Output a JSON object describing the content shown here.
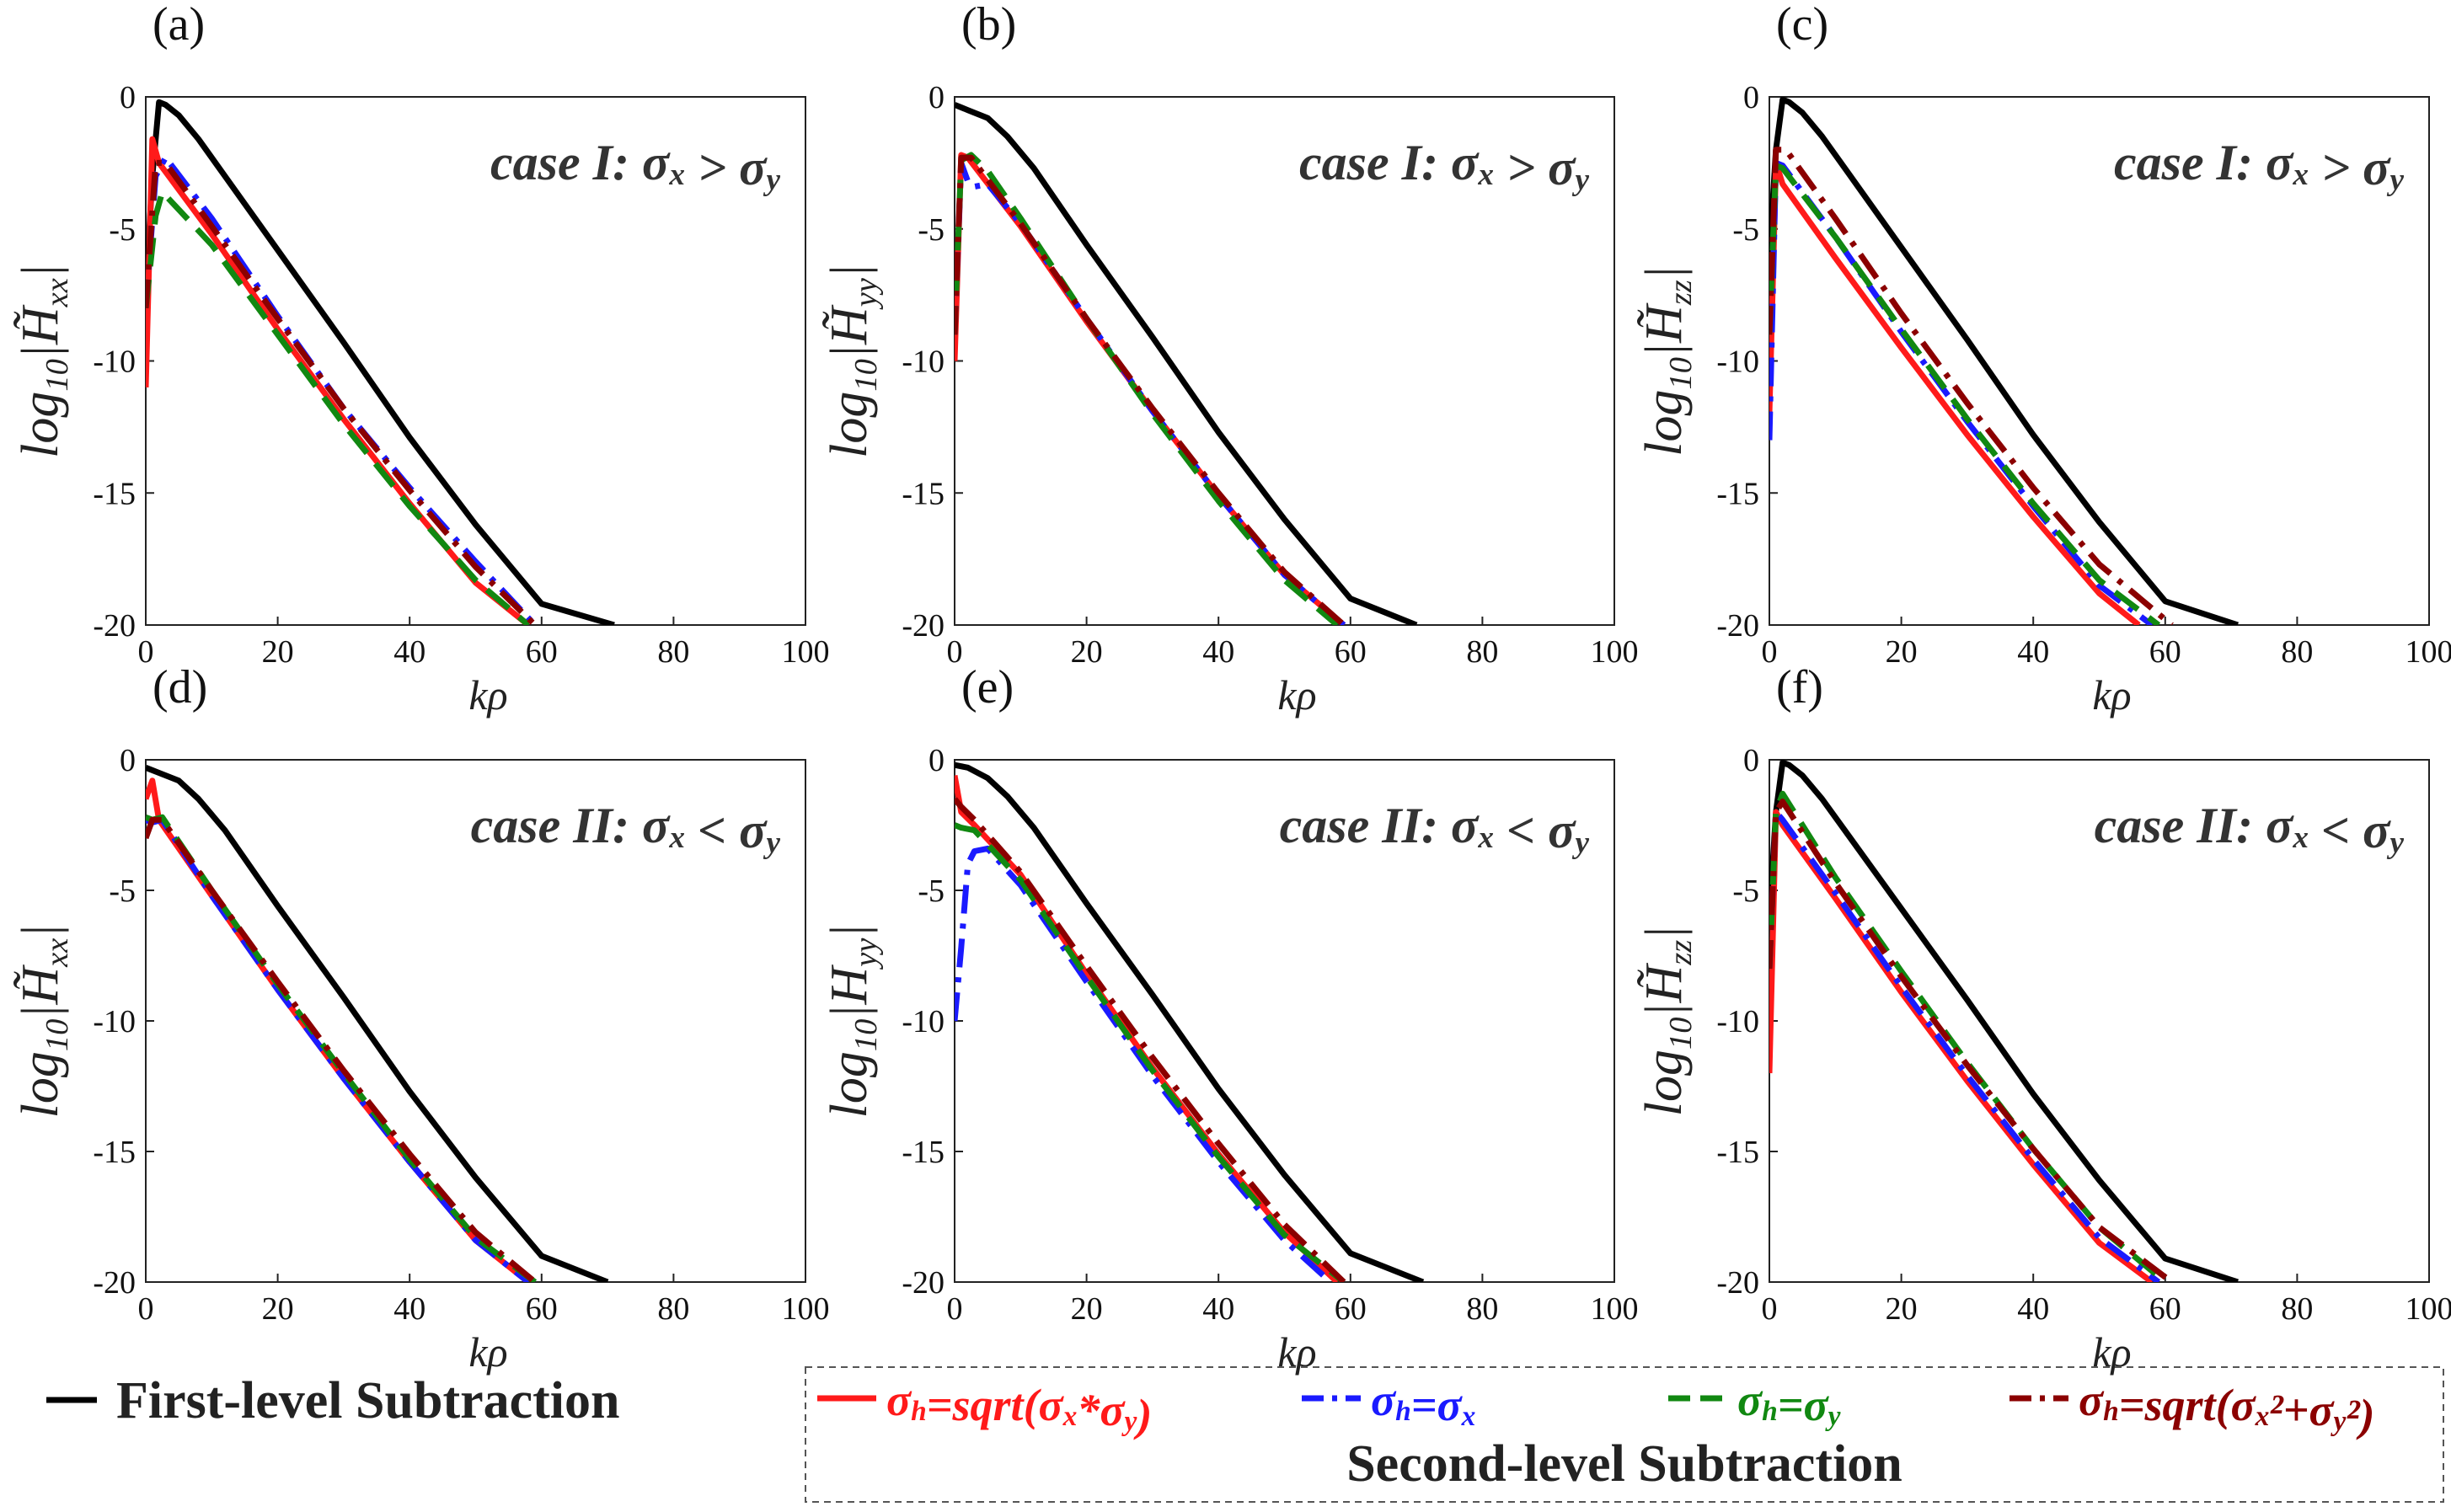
{
  "colors": {
    "first": "#000000",
    "sqrt_prod": "#ff1a1a",
    "sig_x": "#1a1aff",
    "sig_y": "#118811",
    "sqrt_sum": "#8b0000"
  },
  "legend": {
    "first_level": "First-level Subtraction",
    "second_level": "Second-level Subtraction",
    "items": [
      {
        "label": "σh=sqrt(σx*σy)",
        "color_key": "sqrt_prod",
        "dash": "solid"
      },
      {
        "label": "σh=σx",
        "color_key": "sig_x",
        "dash": "dashdot"
      },
      {
        "label": "σh=σy",
        "color_key": "sig_y",
        "dash": "dashed"
      },
      {
        "label": "σh=sqrt(σx²+σy²)",
        "color_key": "sqrt_sum",
        "dash": "dashdot"
      }
    ]
  },
  "chart_data": [
    {
      "type": "line",
      "panel": "(a)",
      "case_label": "case I: σx > σy",
      "xlabel": "kρ",
      "ylabel": "log10|H̃xx|",
      "xlim": [
        0,
        100
      ],
      "ylim": [
        -20,
        0
      ],
      "xticks": [
        0,
        20,
        40,
        60,
        80,
        100
      ],
      "yticks": [
        0,
        -5,
        -10,
        -15,
        -20
      ],
      "series": [
        {
          "name": "First-level Subtraction",
          "color_key": "first",
          "dash": "solid",
          "x": [
            0,
            1,
            2,
            3,
            5,
            8,
            12,
            20,
            30,
            40,
            50,
            60,
            71
          ],
          "y": [
            -7.5,
            -3,
            -0.2,
            -0.3,
            -0.7,
            -1.6,
            -3.0,
            -5.8,
            -9.3,
            -12.9,
            -16.2,
            -19.2,
            -20
          ]
        },
        {
          "name": "σh=sqrt(σx*σy)",
          "color_key": "sqrt_prod",
          "dash": "solid",
          "x": [
            0,
            1,
            2,
            10,
            20,
            30,
            40,
            50,
            58
          ],
          "y": [
            -11,
            -1.6,
            -2.5,
            -5.2,
            -8.8,
            -12.2,
            -15.4,
            -18.4,
            -20
          ]
        },
        {
          "name": "σh=σx",
          "color_key": "sig_x",
          "dash": "dashdot",
          "x": [
            0,
            1.5,
            3,
            10,
            20,
            30,
            40,
            50,
            59
          ],
          "y": [
            -8,
            -3,
            -2.3,
            -4.6,
            -8.3,
            -11.8,
            -14.8,
            -17.6,
            -20
          ]
        },
        {
          "name": "σh=σy",
          "color_key": "sig_y",
          "dash": "dashed",
          "x": [
            0,
            1.5,
            2.5,
            10,
            20,
            30,
            40,
            50,
            58
          ],
          "y": [
            -8,
            -4.5,
            -3.6,
            -5.6,
            -9.0,
            -12.4,
            -15.5,
            -18.3,
            -20
          ]
        },
        {
          "name": "σh=sqrt(σx²+σy²)",
          "color_key": "sqrt_sum",
          "dash": "dashdot",
          "x": [
            0,
            1.5,
            3,
            10,
            20,
            30,
            40,
            50,
            59
          ],
          "y": [
            -8,
            -2.5,
            -2.5,
            -4.9,
            -8.4,
            -11.8,
            -14.9,
            -17.8,
            -20
          ]
        }
      ]
    },
    {
      "type": "line",
      "panel": "(b)",
      "case_label": "case I: σx > σy",
      "xlabel": "kρ",
      "ylabel": "log10|H̃yy|",
      "xlim": [
        0,
        100
      ],
      "ylim": [
        -20,
        0
      ],
      "xticks": [
        0,
        20,
        40,
        60,
        80,
        100
      ],
      "yticks": [
        0,
        -5,
        -10,
        -15,
        -20
      ],
      "series": [
        {
          "name": "First-level Subtraction",
          "color_key": "first",
          "dash": "solid",
          "x": [
            0,
            2,
            5,
            8,
            12,
            20,
            30,
            40,
            50,
            60,
            70
          ],
          "y": [
            -0.3,
            -0.5,
            -0.8,
            -1.5,
            -2.7,
            -5.6,
            -9.1,
            -12.7,
            -16.0,
            -19.0,
            -20
          ]
        },
        {
          "name": "σh=sqrt(σx*σy)",
          "color_key": "sqrt_prod",
          "dash": "solid",
          "x": [
            0,
            1,
            2,
            10,
            20,
            30,
            40,
            50,
            59
          ],
          "y": [
            -10,
            -2.2,
            -2.3,
            -4.9,
            -8.5,
            -11.9,
            -15.1,
            -18.1,
            -20
          ]
        },
        {
          "name": "σh=σx",
          "color_key": "sig_x",
          "dash": "dashdot",
          "x": [
            0,
            1,
            2,
            3,
            5,
            10,
            20,
            30,
            40,
            50,
            59
          ],
          "y": [
            -9,
            -2.5,
            -3.2,
            -3.4,
            -3.3,
            -4.8,
            -8.4,
            -11.9,
            -15.1,
            -18.1,
            -20
          ]
        },
        {
          "name": "σh=σy",
          "color_key": "sig_y",
          "dash": "dashed",
          "x": [
            0,
            1,
            2.5,
            5,
            10,
            20,
            30,
            40,
            50,
            58
          ],
          "y": [
            -9,
            -2.4,
            -2.2,
            -2.8,
            -4.6,
            -8.4,
            -12.0,
            -15.3,
            -18.3,
            -20
          ]
        },
        {
          "name": "σh=sqrt(σx²+σy²)",
          "color_key": "sqrt_sum",
          "dash": "dashdot",
          "x": [
            0,
            1,
            2.5,
            10,
            20,
            30,
            40,
            50,
            59
          ],
          "y": [
            -9,
            -2.3,
            -2.3,
            -4.8,
            -8.4,
            -11.8,
            -15.0,
            -18.0,
            -20
          ]
        }
      ]
    },
    {
      "type": "line",
      "panel": "(c)",
      "case_label": "case I: σx > σy",
      "xlabel": "kρ",
      "ylabel": "log10|H̃zz|",
      "xlim": [
        0,
        100
      ],
      "ylim": [
        -20,
        0
      ],
      "xticks": [
        0,
        20,
        40,
        60,
        80,
        100
      ],
      "yticks": [
        0,
        -5,
        -10,
        -15,
        -20
      ],
      "series": [
        {
          "name": "First-level Subtraction",
          "color_key": "first",
          "dash": "solid",
          "x": [
            0,
            1,
            2,
            3,
            5,
            8,
            12,
            20,
            30,
            40,
            50,
            60,
            71
          ],
          "y": [
            -6,
            -2,
            -0.1,
            -0.2,
            -0.6,
            -1.5,
            -2.9,
            -5.7,
            -9.2,
            -12.8,
            -16.1,
            -19.1,
            -20
          ]
        },
        {
          "name": "σh=sqrt(σx*σy)",
          "color_key": "sqrt_prod",
          "dash": "solid",
          "x": [
            0,
            1,
            2,
            10,
            20,
            30,
            40,
            50,
            56
          ],
          "y": [
            -12,
            -2.5,
            -3.3,
            -6.1,
            -9.5,
            -12.8,
            -15.9,
            -18.8,
            -20
          ]
        },
        {
          "name": "σh=σx",
          "color_key": "sig_x",
          "dash": "dashdot",
          "x": [
            0,
            1,
            2,
            10,
            20,
            30,
            40,
            50,
            58
          ],
          "y": [
            -13,
            -2.5,
            -2.6,
            -5.3,
            -8.9,
            -12.3,
            -15.5,
            -18.5,
            -20
          ]
        },
        {
          "name": "σh=σy",
          "color_key": "sig_y",
          "dash": "dashed",
          "x": [
            0,
            1,
            2,
            10,
            20,
            30,
            40,
            50,
            59
          ],
          "y": [
            -9,
            -2.6,
            -2.7,
            -5.3,
            -8.8,
            -12.2,
            -15.4,
            -18.3,
            -20
          ]
        },
        {
          "name": "σh=sqrt(σx²+σy²)",
          "color_key": "sqrt_sum",
          "dash": "dashdot",
          "x": [
            0,
            1,
            2.5,
            10,
            20,
            30,
            40,
            50,
            61
          ],
          "y": [
            -9,
            -2,
            -2,
            -4.6,
            -8.2,
            -11.6,
            -14.8,
            -17.7,
            -20
          ]
        }
      ]
    },
    {
      "type": "line",
      "panel": "(d)",
      "case_label": "case II: σx < σy",
      "xlabel": "kρ",
      "ylabel": "log10|H̃xx|",
      "xlim": [
        0,
        100
      ],
      "ylim": [
        -20,
        0
      ],
      "xticks": [
        0,
        20,
        40,
        60,
        80,
        100
      ],
      "yticks": [
        0,
        -5,
        -10,
        -15,
        -20
      ],
      "series": [
        {
          "name": "First-level Subtraction",
          "color_key": "first",
          "dash": "solid",
          "x": [
            0,
            2,
            5,
            8,
            12,
            20,
            30,
            40,
            50,
            60,
            70
          ],
          "y": [
            -0.3,
            -0.5,
            -0.8,
            -1.5,
            -2.7,
            -5.6,
            -9.1,
            -12.7,
            -16.0,
            -19.0,
            -20
          ]
        },
        {
          "name": "σh=sqrt(σx*σy)",
          "color_key": "sqrt_prod",
          "dash": "solid",
          "x": [
            0,
            1,
            2,
            10,
            20,
            30,
            40,
            50,
            58
          ],
          "y": [
            -1.5,
            -0.8,
            -2.3,
            -5.2,
            -8.8,
            -12.2,
            -15.4,
            -18.4,
            -20
          ]
        },
        {
          "name": "σh=σx",
          "color_key": "sig_x",
          "dash": "dashdot",
          "x": [
            0,
            1,
            2.5,
            10,
            20,
            30,
            40,
            50,
            58
          ],
          "y": [
            -2.3,
            -2.4,
            -2.3,
            -5.2,
            -8.8,
            -12.2,
            -15.4,
            -18.4,
            -20
          ]
        },
        {
          "name": "σh=σy",
          "color_key": "sig_y",
          "dash": "dashed",
          "x": [
            0,
            1,
            2.5,
            10,
            20,
            30,
            40,
            50,
            59
          ],
          "y": [
            -2.2,
            -2.3,
            -2.2,
            -5.0,
            -8.6,
            -12.0,
            -15.3,
            -18.3,
            -20
          ]
        },
        {
          "name": "σh=sqrt(σx²+σy²)",
          "color_key": "sqrt_sum",
          "dash": "dashdot",
          "x": [
            0,
            1,
            2.5,
            10,
            20,
            30,
            40,
            50,
            59
          ],
          "y": [
            -3,
            -2.3,
            -2.3,
            -5.0,
            -8.5,
            -11.9,
            -15.1,
            -18.1,
            -20
          ]
        }
      ]
    },
    {
      "type": "line",
      "panel": "(e)",
      "case_label": "case II: σx < σy",
      "xlabel": "kρ",
      "ylabel": "log10|Hyy|",
      "xlim": [
        0,
        100
      ],
      "ylim": [
        -20,
        0
      ],
      "xticks": [
        0,
        20,
        40,
        60,
        80,
        100
      ],
      "yticks": [
        0,
        -5,
        -10,
        -15,
        -20
      ],
      "series": [
        {
          "name": "First-level Subtraction",
          "color_key": "first",
          "dash": "solid",
          "x": [
            0,
            2,
            5,
            8,
            12,
            20,
            30,
            40,
            50,
            60,
            71
          ],
          "y": [
            -0.2,
            -0.3,
            -0.7,
            -1.4,
            -2.6,
            -5.5,
            -9.0,
            -12.6,
            -15.9,
            -18.9,
            -20
          ]
        },
        {
          "name": "σh=sqrt(σx*σy)",
          "color_key": "sqrt_prod",
          "dash": "solid",
          "x": [
            0,
            1,
            3,
            10,
            20,
            30,
            40,
            50,
            58
          ],
          "y": [
            -0.6,
            -2.0,
            -2.5,
            -4.4,
            -8.2,
            -11.8,
            -15.1,
            -18.1,
            -20
          ]
        },
        {
          "name": "σh=σx",
          "color_key": "sig_x",
          "dash": "dashdot",
          "x": [
            0,
            1,
            2,
            3,
            5,
            10,
            20,
            30,
            40,
            50,
            57
          ],
          "y": [
            -10,
            -7.2,
            -4,
            -3.5,
            -3.4,
            -4.8,
            -8.5,
            -12.1,
            -15.4,
            -18.4,
            -20
          ]
        },
        {
          "name": "σh=σy",
          "color_key": "sig_y",
          "dash": "dashed",
          "x": [
            0,
            1,
            3,
            10,
            20,
            30,
            40,
            50,
            59
          ],
          "y": [
            -2.5,
            -2.6,
            -2.7,
            -4.6,
            -8.3,
            -11.9,
            -15.2,
            -18.2,
            -20
          ]
        },
        {
          "name": "σh=sqrt(σx²+σy²)",
          "color_key": "sqrt_sum",
          "dash": "dashdot",
          "x": [
            0,
            1,
            3,
            10,
            20,
            30,
            40,
            50,
            59
          ],
          "y": [
            -1.5,
            -1.8,
            -2.3,
            -4.3,
            -7.9,
            -11.4,
            -14.7,
            -17.8,
            -20
          ]
        }
      ]
    },
    {
      "type": "line",
      "panel": "(f)",
      "case_label": "case II: σx < σy",
      "xlabel": "kρ",
      "ylabel": "log10|H̃zz|",
      "xlim": [
        0,
        100
      ],
      "ylim": [
        -20,
        0
      ],
      "xticks": [
        0,
        20,
        40,
        60,
        80,
        100
      ],
      "yticks": [
        0,
        -5,
        -10,
        -15,
        -20
      ],
      "series": [
        {
          "name": "First-level Subtraction",
          "color_key": "first",
          "dash": "solid",
          "x": [
            0,
            1,
            2,
            3,
            5,
            8,
            12,
            20,
            30,
            40,
            50,
            60,
            71
          ],
          "y": [
            -6,
            -2,
            -0.1,
            -0.2,
            -0.6,
            -1.5,
            -2.9,
            -5.7,
            -9.2,
            -12.8,
            -16.1,
            -19.1,
            -20
          ]
        },
        {
          "name": "σh=sqrt(σx*σy)",
          "color_key": "sqrt_prod",
          "dash": "solid",
          "x": [
            0,
            1,
            2,
            10,
            20,
            30,
            40,
            50,
            58
          ],
          "y": [
            -12,
            -2,
            -2.5,
            -5.3,
            -8.9,
            -12.3,
            -15.5,
            -18.5,
            -20
          ]
        },
        {
          "name": "σh=σx",
          "color_key": "sig_x",
          "dash": "dashdot",
          "x": [
            0,
            1,
            2,
            10,
            20,
            30,
            40,
            50,
            59
          ],
          "y": [
            -8,
            -2,
            -2.3,
            -5.1,
            -8.7,
            -12.1,
            -15.3,
            -18.3,
            -20
          ]
        },
        {
          "name": "σh=σy",
          "color_key": "sig_y",
          "dash": "dashed",
          "x": [
            0,
            1,
            2,
            10,
            20,
            30,
            40,
            50,
            60
          ],
          "y": [
            -8,
            -2,
            -1.3,
            -4.5,
            -8.1,
            -11.6,
            -14.9,
            -17.9,
            -20
          ]
        },
        {
          "name": "σh=sqrt(σx²+σy²)",
          "color_key": "sqrt_sum",
          "dash": "dashdot",
          "x": [
            0,
            1,
            2,
            10,
            20,
            30,
            40,
            50,
            61
          ],
          "y": [
            -8,
            -2,
            -1.6,
            -4.7,
            -8.3,
            -11.7,
            -14.9,
            -17.9,
            -20
          ]
        }
      ]
    }
  ]
}
